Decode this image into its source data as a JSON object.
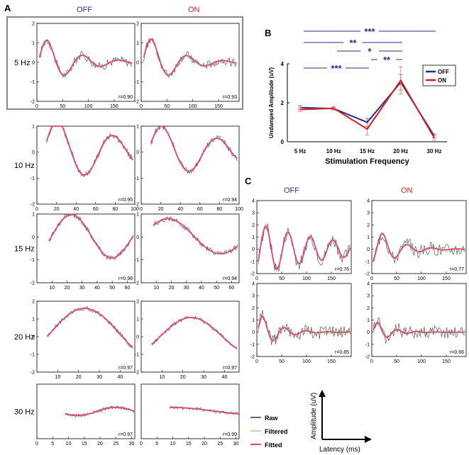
{
  "labels": {
    "panel_a": "A",
    "panel_b": "B",
    "panel_c": "C",
    "off": "OFF",
    "on": "ON",
    "freq": [
      "5 Hz",
      "10 Hz",
      "15 Hz",
      "20 Hz",
      "30 Hz"
    ]
  },
  "colors": {
    "off": "#2b2b8c",
    "on": "#d42020",
    "fitted": "#e0457a",
    "filtered": "#9bd37b",
    "raw": "#555555"
  },
  "legend_traces": {
    "raw": "Raw",
    "filtered": "Filtered",
    "fitted": "Fitted"
  },
  "axis_indicator": {
    "ylabel": "Amplitude (uV)",
    "xlabel": "Latency (ms)"
  },
  "panel_a": {
    "rows": [
      {
        "freq": "5 Hz",
        "xlim": [
          0,
          190
        ],
        "xticks": [
          0,
          50,
          100,
          150
        ],
        "ylim": [
          -2,
          2
        ],
        "yticks": [
          -2,
          -1,
          0,
          1,
          2
        ],
        "off": {
          "r": "r=0.90",
          "amp": 1.15,
          "period": 70,
          "phase": 20,
          "decay": 60,
          "start": 5,
          "end": 185
        },
        "on": {
          "r": "r=0.93",
          "amp": 1.2,
          "period": 70,
          "phase": 20,
          "decay": 55,
          "start": 5,
          "end": 185
        }
      },
      {
        "freq": "10 Hz",
        "xlim": [
          0,
          100
        ],
        "xticks": [
          0,
          20,
          40,
          60,
          80,
          100
        ],
        "ylim": [
          -2,
          1
        ],
        "yticks": [
          -2,
          -1,
          0,
          1
        ],
        "off": {
          "r": "r=0.95",
          "amp": 1.2,
          "period": 57,
          "phase": 21,
          "decay": 90,
          "start": 10,
          "end": 98
        },
        "on": {
          "r": "r=0.94",
          "amp": 1.0,
          "period": 57,
          "phase": 21,
          "decay": 90,
          "start": 10,
          "end": 98
        }
      },
      {
        "freq": "15 Hz",
        "xlim": [
          0,
          65
        ],
        "xticks": [
          10,
          20,
          30,
          40,
          50,
          60
        ],
        "ylim": [
          -2,
          1
        ],
        "yticks": [
          -2,
          -1,
          0,
          1
        ],
        "off": {
          "r": "r=0.98",
          "amp": 0.98,
          "period": 54,
          "phase": 23,
          "decay": 400,
          "start": 8,
          "end": 64
        },
        "on": {
          "r": "r=0.94",
          "amp": 0.8,
          "period": 70,
          "phase": 18,
          "decay": 400,
          "start": 8,
          "end": 64
        }
      },
      {
        "freq": "20 Hz",
        "xlim": [
          0,
          47
        ],
        "xticks": [
          10,
          20,
          30,
          40
        ],
        "ylim": [
          -2,
          2
        ],
        "yticks": [
          -2,
          -1,
          0,
          1,
          2
        ],
        "off": {
          "r": "r=0.97",
          "amp": 1.6,
          "period": 72,
          "phase": 23,
          "decay": 400,
          "start": 5,
          "end": 46
        },
        "on": {
          "r": "r=0.97",
          "amp": 1.08,
          "period": 60,
          "phase": 24,
          "decay": 400,
          "start": 5,
          "end": 46
        }
      },
      {
        "freq": "30 Hz",
        "xlim": [
          0,
          31
        ],
        "xticks": [
          0,
          5,
          10,
          15,
          20,
          25,
          30
        ],
        "ylim": [
          -2,
          2
        ],
        "yticks": [],
        "off": {
          "r": "r=0.97",
          "amp": 0.3,
          "period": 24,
          "phase": 25,
          "decay": 400,
          "start": 9,
          "end": 31
        },
        "on": {
          "r": "r=0.99",
          "amp": 0.3,
          "period": 60,
          "phase": 9,
          "decay": 400,
          "start": 9,
          "end": 31
        }
      }
    ]
  },
  "chart_data": {
    "type": "line",
    "categories": [
      "5 Hz",
      "10 Hz",
      "15 Hz",
      "20 Hz",
      "30 Hz"
    ],
    "xlabel": "Stimulation Frequency",
    "ylabel": "Undamped Amplitude (uV)",
    "ylim": [
      0,
      4
    ],
    "yticks": [
      0,
      2,
      4
    ],
    "legend": "right",
    "series": [
      {
        "name": "OFF",
        "values": [
          1.75,
          1.7,
          1.0,
          3.05,
          0.3
        ],
        "err": [
          0.1,
          0.08,
          0.2,
          0.4,
          0.1
        ]
      },
      {
        "name": "ON",
        "values": [
          1.65,
          1.72,
          0.65,
          3.15,
          0.2
        ],
        "err": [
          0.1,
          0.08,
          0.3,
          0.7,
          0.12
        ]
      }
    ],
    "significance": [
      {
        "from": 0,
        "to": 3,
        "label": "***"
      },
      {
        "from": 0,
        "to": 3,
        "label": "**"
      },
      {
        "from": 1,
        "to": 3,
        "label": "*"
      },
      {
        "from": 2,
        "to": 3,
        "label": "**"
      },
      {
        "from": 0,
        "to": 2,
        "label": "***"
      }
    ]
  },
  "panel_c": {
    "xlim": [
      0,
      190
    ],
    "xticks": [
      0,
      50,
      100,
      150
    ],
    "ylim": [
      -2,
      4
    ],
    "yticks": [
      -2,
      -1,
      0,
      1,
      2,
      3,
      4
    ],
    "plots": [
      {
        "row": 0,
        "col": 0,
        "r": "r=0.76",
        "amp": 1.9,
        "period": 45,
        "phase": 18,
        "decay": 150
      },
      {
        "row": 0,
        "col": 1,
        "r": "r=0.77",
        "amp": 1.3,
        "period": 50,
        "phase": 22,
        "decay": 40
      },
      {
        "row": 1,
        "col": 0,
        "r": "r=0.85",
        "amp": 1.3,
        "period": 44,
        "phase": 12,
        "decay": 35
      },
      {
        "row": 1,
        "col": 1,
        "r": "r=0.66",
        "amp": 0.8,
        "period": 40,
        "phase": 12,
        "decay": 30
      }
    ]
  }
}
